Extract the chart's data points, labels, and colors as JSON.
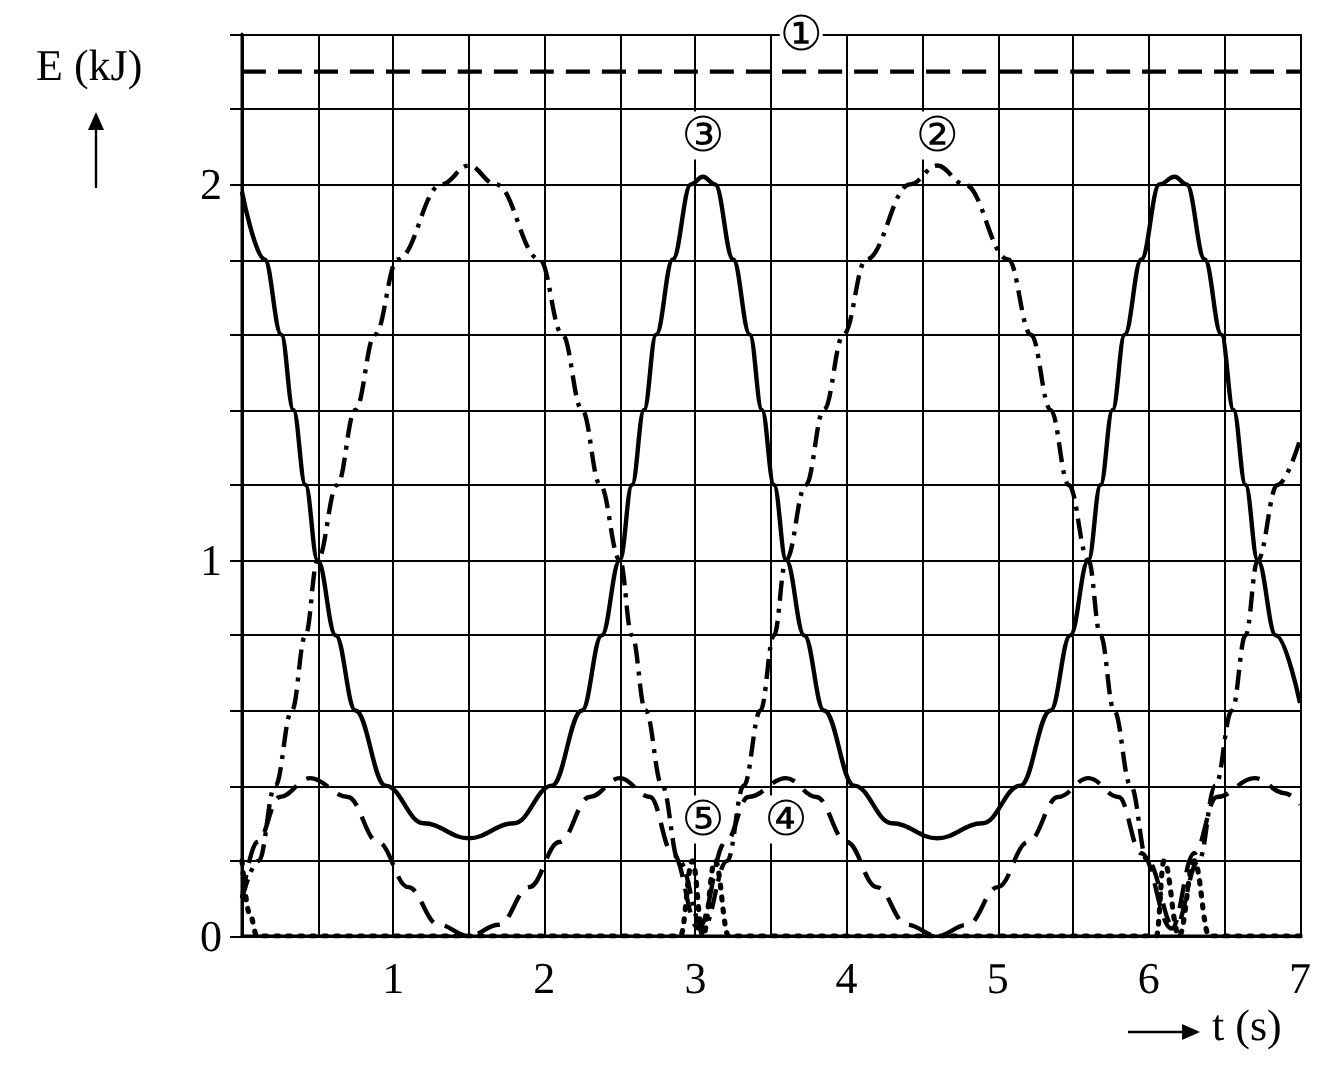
{
  "chart_data": {
    "type": "line",
    "xlabel": "t (s)",
    "ylabel": "E (kJ)",
    "xlim": [
      0,
      7
    ],
    "ylim": [
      0,
      2.4
    ],
    "xticks": [
      {
        "value": 0,
        "label": null
      },
      {
        "value": 0.5,
        "label": null
      },
      1,
      {
        "value": 1.5,
        "label": null
      },
      2,
      {
        "value": 2.5,
        "label": null
      },
      3,
      {
        "value": 3.5,
        "label": null
      },
      4,
      {
        "value": 4.5,
        "label": null
      },
      5,
      {
        "value": 5.5,
        "label": null
      },
      6,
      {
        "value": 6.5,
        "label": null
      },
      7
    ],
    "yticks": [
      0,
      {
        "value": 0.2,
        "label": null
      },
      {
        "value": 0.4,
        "label": null
      },
      {
        "value": 0.6,
        "label": null
      },
      {
        "value": 0.8,
        "label": null
      },
      1,
      {
        "value": 1.2,
        "label": null
      },
      {
        "value": 1.4,
        "label": null
      },
      {
        "value": 1.6,
        "label": null
      },
      {
        "value": 1.8,
        "label": null
      },
      2,
      {
        "value": 2.2,
        "label": null
      },
      {
        "value": 2.4,
        "label": null
      }
    ],
    "grid": true,
    "marker": "none",
    "series": [
      {
        "color": "#000000",
        "line_style": "dashed",
        "x": [
          0,
          7
        ],
        "values": [
          2.3,
          2.3
        ]
      },
      {
        "color": "#000000",
        "line_style": "dashdot",
        "x": [
          0,
          0.11,
          0.22,
          0.33,
          0.42,
          0.5,
          0.63,
          0.75,
          0.88,
          1.03,
          1.32,
          1.5,
          1.68,
          1.97,
          2.12,
          2.25,
          2.37,
          2.5,
          2.58,
          2.67,
          2.78,
          2.89,
          3.05,
          3.21,
          3.32,
          3.43,
          3.52,
          3.6,
          3.73,
          3.85,
          3.98,
          4.13,
          4.42,
          4.6,
          4.78,
          5.07,
          5.22,
          5.35,
          5.47,
          5.6,
          5.68,
          5.77,
          5.88,
          5.99,
          6.17,
          6.33,
          6.44,
          6.55,
          6.64,
          6.72,
          6.85,
          7
        ],
        "values": [
          0.1,
          0.2,
          0.4,
          0.6,
          0.8,
          1.0,
          1.2,
          1.4,
          1.6,
          1.8,
          2.0,
          2.05,
          2.0,
          1.8,
          1.6,
          1.4,
          1.2,
          1.0,
          0.8,
          0.6,
          0.4,
          0.2,
          0.02,
          0.2,
          0.4,
          0.6,
          0.8,
          1.0,
          1.2,
          1.4,
          1.6,
          1.8,
          2.0,
          2.05,
          2.0,
          1.8,
          1.6,
          1.4,
          1.2,
          1.0,
          0.8,
          0.6,
          0.4,
          0.2,
          0.02,
          0.2,
          0.4,
          0.6,
          0.8,
          1.0,
          1.2,
          1.32
        ]
      },
      {
        "color": "#000000",
        "line_style": "solid",
        "x": [
          0,
          0.15,
          0.26,
          0.34,
          0.42,
          0.5,
          0.62,
          0.75,
          0.95,
          1.2,
          1.5,
          1.8,
          2.05,
          2.25,
          2.38,
          2.5,
          2.58,
          2.66,
          2.74,
          2.85,
          2.97,
          3.05,
          3.13,
          3.25,
          3.36,
          3.44,
          3.52,
          3.6,
          3.72,
          3.85,
          4.05,
          4.3,
          4.6,
          4.9,
          5.15,
          5.35,
          5.48,
          5.6,
          5.68,
          5.76,
          5.84,
          5.95,
          6.07,
          6.17,
          6.25,
          6.37,
          6.48,
          6.56,
          6.64,
          6.72,
          6.84,
          7
        ],
        "values": [
          1.98,
          1.8,
          1.6,
          1.4,
          1.2,
          1.0,
          0.8,
          0.6,
          0.4,
          0.3,
          0.26,
          0.3,
          0.4,
          0.6,
          0.8,
          1.0,
          1.2,
          1.4,
          1.6,
          1.8,
          2.0,
          2.02,
          2.0,
          1.8,
          1.6,
          1.4,
          1.2,
          1.0,
          0.8,
          0.6,
          0.4,
          0.3,
          0.26,
          0.3,
          0.4,
          0.6,
          0.8,
          1.0,
          1.2,
          1.4,
          1.6,
          1.8,
          2.0,
          2.02,
          2.0,
          1.8,
          1.6,
          1.4,
          1.2,
          1.0,
          0.8,
          0.62
        ]
      },
      {
        "color": "#000000",
        "line_style": "dashed",
        "x": [
          0,
          0.1,
          0.25,
          0.45,
          0.7,
          0.9,
          1.1,
          1.3,
          1.5,
          1.7,
          1.9,
          2.1,
          2.3,
          2.5,
          2.7,
          2.85,
          3.02,
          3.2,
          3.35,
          3.6,
          3.8,
          4.0,
          4.2,
          4.4,
          4.6,
          4.8,
          5.0,
          5.2,
          5.4,
          5.6,
          5.8,
          5.95,
          6.15,
          6.3,
          6.45,
          6.7,
          6.9,
          7
        ],
        "values": [
          0.1,
          0.25,
          0.37,
          0.42,
          0.37,
          0.25,
          0.13,
          0.03,
          0,
          0.03,
          0.13,
          0.25,
          0.37,
          0.42,
          0.37,
          0.22,
          0.02,
          0.25,
          0.37,
          0.42,
          0.37,
          0.25,
          0.13,
          0.03,
          0,
          0.03,
          0.13,
          0.25,
          0.37,
          0.42,
          0.37,
          0.22,
          0.02,
          0.22,
          0.37,
          0.42,
          0.38,
          0.35
        ]
      },
      {
        "color": "#000000",
        "line_style": "dotted",
        "x": [
          0,
          0.05,
          0.1,
          2.9,
          2.98,
          3.05,
          3.13,
          3.22,
          6.05,
          6.1,
          6.2,
          6.3,
          6.4,
          7
        ],
        "values": [
          0.2,
          0.06,
          0,
          0,
          0.2,
          0,
          0.2,
          0,
          0,
          0.2,
          0,
          0.2,
          0,
          0
        ]
      }
    ],
    "annotations": [
      {
        "text": "①",
        "x": 3.7,
        "y": 2.4
      },
      {
        "text": "③",
        "x": 3.05,
        "y": 2.13
      },
      {
        "text": "②",
        "x": 4.6,
        "y": 2.13
      },
      {
        "text": "⑤",
        "x": 3.05,
        "y": 0.31
      },
      {
        "text": "④",
        "x": 3.6,
        "y": 0.31
      }
    ]
  }
}
